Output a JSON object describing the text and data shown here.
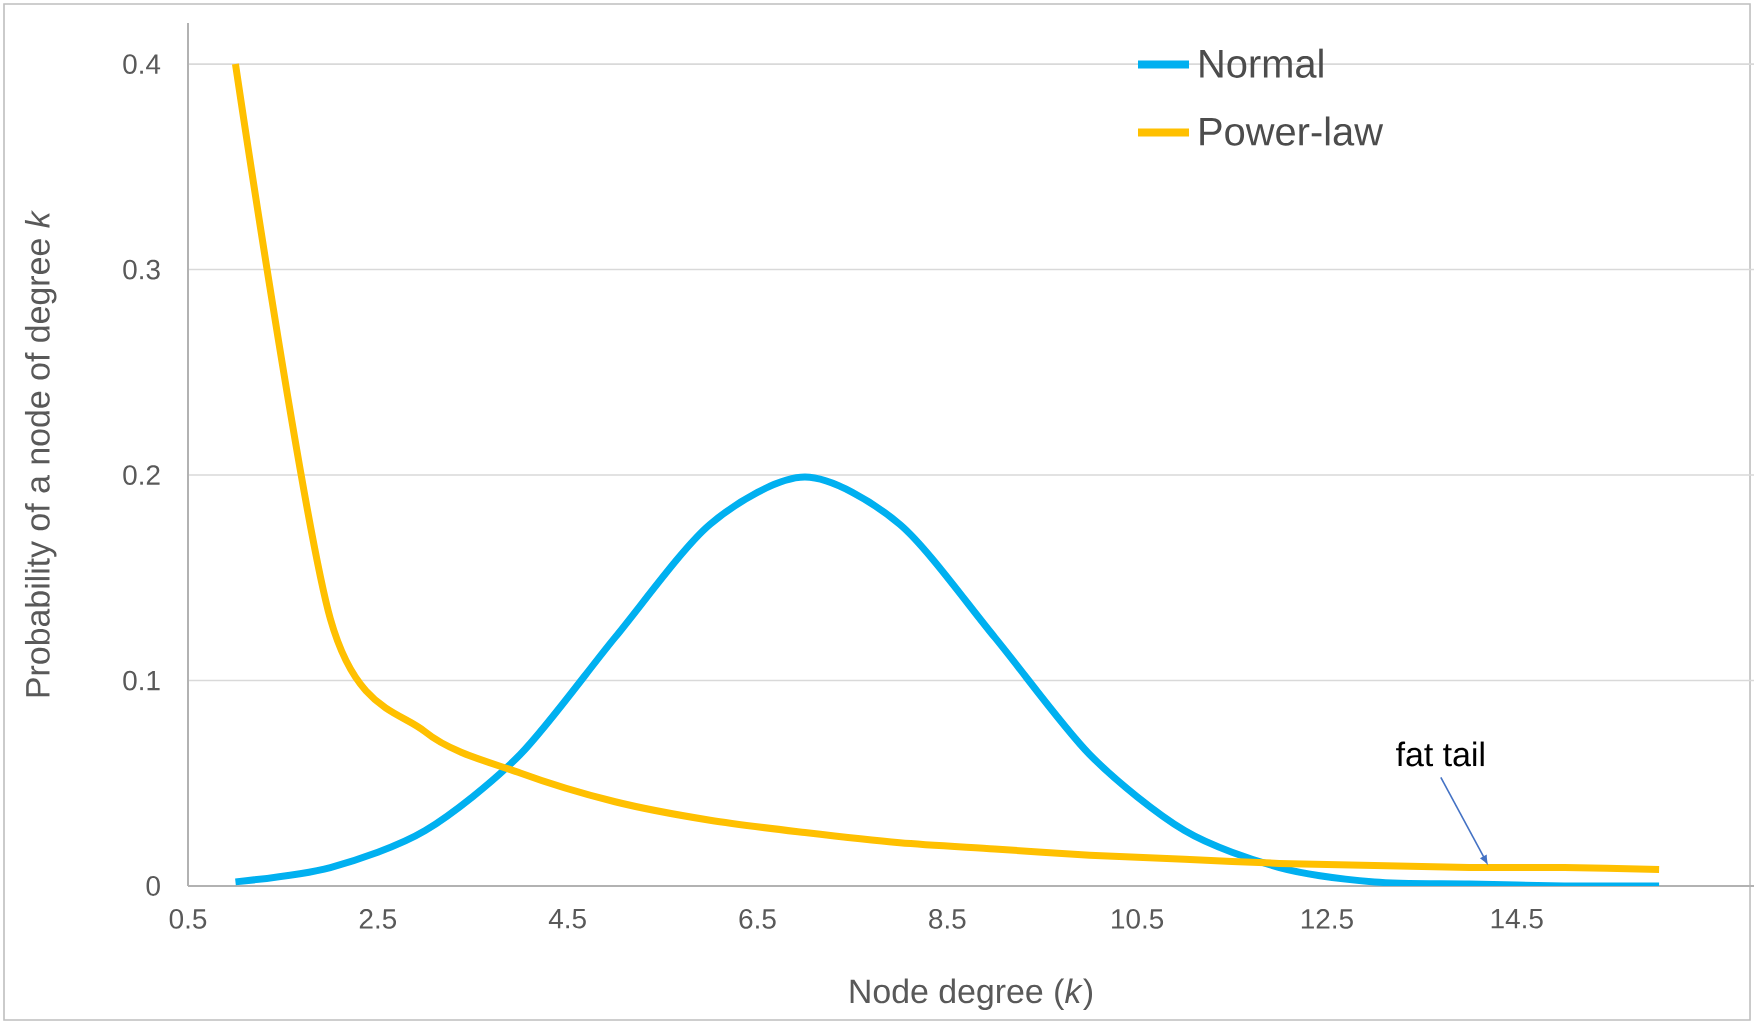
{
  "chart_data": {
    "type": "line",
    "xlabel": "Node degree (*k*)",
    "ylabel": "Probability of a node of degree *k*",
    "x": [
      1,
      2,
      3,
      4,
      5,
      6,
      7,
      8,
      9,
      10,
      11,
      12,
      13,
      14,
      15,
      16
    ],
    "series": [
      {
        "name": "Normal",
        "color": "#00b0f0",
        "values": [
          0.002,
          0.009,
          0.027,
          0.064,
          0.121,
          0.176,
          0.199,
          0.176,
          0.121,
          0.064,
          0.027,
          0.009,
          0.002,
          0.001,
          0,
          0
        ]
      },
      {
        "name": "Power-law",
        "color": "#ffc000",
        "values": [
          0.4,
          0.13,
          0.075,
          0.055,
          0.041,
          0.032,
          0.026,
          0.021,
          0.018,
          0.015,
          0.013,
          0.011,
          0.01,
          0.009,
          0.009,
          0.008
        ]
      }
    ],
    "xlim": [
      0.5,
      17
    ],
    "ylim": [
      0,
      0.42
    ],
    "xticks": [
      0.5,
      2.5,
      4.5,
      6.5,
      8.5,
      10.5,
      12.5,
      14.5
    ],
    "yticks": [
      0,
      0.1,
      0.2,
      0.3,
      0.4
    ],
    "grid": "y",
    "legend": "top right",
    "line_style": "solid",
    "marker": "none",
    "annotations": [
      {
        "text": "fat tail",
        "x": 14.2,
        "y": 0.01
      }
    ]
  }
}
